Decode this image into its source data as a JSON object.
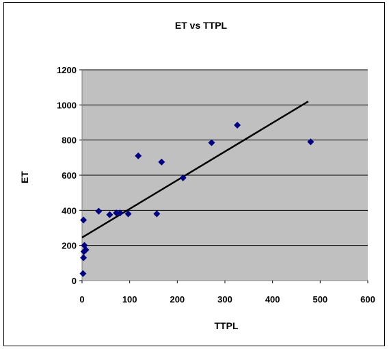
{
  "chart_data": {
    "type": "scatter",
    "title": "ET vs TTPL",
    "xlabel": "TTPL",
    "ylabel": "ET",
    "xlim": [
      0,
      600
    ],
    "ylim": [
      0,
      1200
    ],
    "xticks": [
      0,
      100,
      200,
      300,
      400,
      500,
      600
    ],
    "yticks": [
      0,
      200,
      400,
      600,
      800,
      1000,
      1200
    ],
    "x_tick_labels": [
      "0",
      "100",
      "200",
      "300",
      "400",
      "500",
      "600"
    ],
    "y_tick_labels": [
      "0",
      "200",
      "400",
      "600",
      "800",
      "1000",
      "1200"
    ],
    "grid": "horizontal",
    "plot_background": "#c0c0c0",
    "marker_color": "#000080",
    "trendline_color": "#000000",
    "series": [
      {
        "x": [
          2,
          3,
          4,
          5,
          8,
          3,
          35,
          58,
          72,
          80,
          97,
          118,
          157,
          167,
          212,
          272,
          326,
          480
        ],
        "y": [
          40,
          130,
          165,
          200,
          175,
          345,
          395,
          375,
          385,
          385,
          380,
          710,
          380,
          675,
          585,
          785,
          885,
          790
        ]
      }
    ],
    "trendline": {
      "x": [
        0,
        475
      ],
      "y": [
        245,
        1020
      ]
    }
  }
}
